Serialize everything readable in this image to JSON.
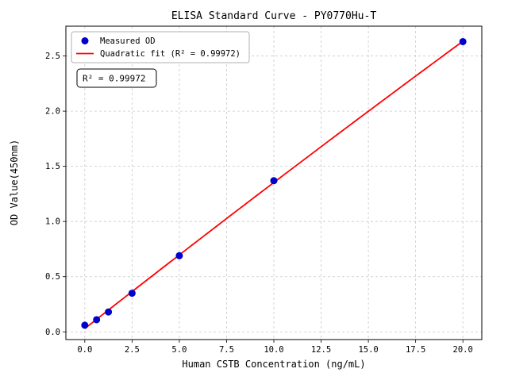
{
  "chart_data": {
    "type": "scatter",
    "title": "ELISA Standard Curve - PY0770Hu-T",
    "xlabel": "Human CSTB Concentration (ng/mL)",
    "ylabel": "OD Value(450nm)",
    "xlim": [
      -1,
      21
    ],
    "ylim": [
      -0.07,
      2.77
    ],
    "xticks": [
      0.0,
      2.5,
      5.0,
      7.5,
      10.0,
      12.5,
      15.0,
      17.5,
      20.0
    ],
    "yticks": [
      0.0,
      0.5,
      1.0,
      1.5,
      2.0,
      2.5
    ],
    "grid": true,
    "legend_position": "upper-left",
    "legend": {
      "entries": [
        {
          "label": "Measured OD",
          "marker": "dot",
          "color": "#0000cd"
        },
        {
          "label": "Quadratic fit (R² = 0.99972)",
          "marker": "line",
          "color": "#ff0000"
        }
      ]
    },
    "annotation": "R² = 0.99972",
    "r_squared": 0.99972,
    "series": [
      {
        "name": "Measured OD",
        "type": "scatter",
        "color": "#0000cd",
        "x": [
          0,
          0.625,
          1.25,
          2.5,
          5,
          10,
          20
        ],
        "y": [
          0.06,
          0.11,
          0.18,
          0.35,
          0.69,
          1.37,
          2.63
        ]
      },
      {
        "name": "Quadratic fit",
        "type": "quadratic-fit-line",
        "color": "#ff0000",
        "x_range": [
          0,
          20
        ]
      }
    ],
    "colors": {
      "grid": "#c9c9c9",
      "frame": "#000000",
      "background": "#ffffff"
    }
  }
}
